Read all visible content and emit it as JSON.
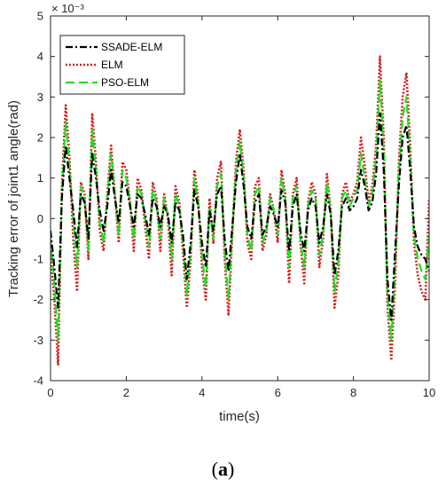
{
  "chart_data": {
    "type": "line",
    "title": "",
    "xlabel": "time(s)",
    "ylabel": "Tracking error of joint1 angle(rad)",
    "exponent_label": "× 10⁻³",
    "xlim": [
      0,
      10
    ],
    "ylim": [
      -4,
      5
    ],
    "xticks": [
      "0",
      "2",
      "4",
      "6",
      "8",
      "10"
    ],
    "yticks": [
      "-4",
      "-3",
      "-2",
      "-1",
      "0",
      "1",
      "2",
      "3",
      "4",
      "5"
    ],
    "legend_position": "top-left",
    "grid": false,
    "series": [
      {
        "name": "SSADE-ELM",
        "color": "#000000",
        "style": "dashdot",
        "x": [
          0,
          0.1,
          0.2,
          0.3,
          0.4,
          0.5,
          0.6,
          0.7,
          0.8,
          0.9,
          1.0,
          1.1,
          1.2,
          1.3,
          1.4,
          1.5,
          1.6,
          1.7,
          1.8,
          1.9,
          2.0,
          2.1,
          2.2,
          2.3,
          2.4,
          2.5,
          2.6,
          2.7,
          2.8,
          2.9,
          3.0,
          3.1,
          3.2,
          3.3,
          3.4,
          3.5,
          3.6,
          3.7,
          3.8,
          3.9,
          4.0,
          4.1,
          4.2,
          4.3,
          4.4,
          4.5,
          4.6,
          4.7,
          4.8,
          4.9,
          5.0,
          5.1,
          5.2,
          5.3,
          5.4,
          5.5,
          5.6,
          5.7,
          5.8,
          5.9,
          6.0,
          6.1,
          6.2,
          6.3,
          6.4,
          6.5,
          6.6,
          6.7,
          6.8,
          6.9,
          7.0,
          7.1,
          7.2,
          7.3,
          7.4,
          7.5,
          7.6,
          7.7,
          7.8,
          7.9,
          8.0,
          8.1,
          8.2,
          8.3,
          8.4,
          8.5,
          8.6,
          8.7,
          8.8,
          8.9,
          9.0,
          9.1,
          9.2,
          9.3,
          9.4,
          9.5,
          9.6,
          9.7,
          9.8,
          9.9,
          10.0
        ],
        "values": [
          -0.3,
          -1.2,
          -2.2,
          0.5,
          1.8,
          1.0,
          0.2,
          -0.7,
          0.6,
          0.4,
          -0.5,
          1.6,
          1.0,
          0.2,
          -0.3,
          0.3,
          1.2,
          0.5,
          -0.1,
          0.9,
          0.8,
          0.3,
          -0.2,
          0.6,
          0.5,
          0.1,
          -0.4,
          0.5,
          0.3,
          -0.2,
          0.3,
          0.1,
          -0.6,
          0.4,
          0.2,
          -0.4,
          -1.5,
          -0.6,
          0.7,
          0.3,
          -0.6,
          -1.2,
          0.2,
          -0.3,
          0.6,
          0.8,
          -0.5,
          -1.3,
          -0.2,
          0.9,
          1.6,
          0.8,
          -0.2,
          -0.5,
          0.4,
          0.6,
          -0.4,
          -0.2,
          0.3,
          0.1,
          -0.2,
          0.7,
          0.4,
          -0.8,
          0.3,
          0.6,
          -0.3,
          -0.8,
          0.2,
          0.5,
          0.3,
          -0.6,
          -0.2,
          0.6,
          0.1,
          -1.4,
          -0.8,
          0.3,
          0.5,
          0.2,
          0.3,
          0.5,
          1.2,
          0.8,
          0.2,
          0.4,
          1.1,
          2.6,
          1.2,
          -1.5,
          -2.5,
          -0.8,
          0.8,
          2.0,
          2.3,
          1.2,
          -0.2,
          -0.7,
          -0.9,
          -1.0,
          -1.3
        ]
      },
      {
        "name": "ELM",
        "color": "#cc2222",
        "style": "dotted",
        "x": [
          0,
          0.1,
          0.2,
          0.3,
          0.4,
          0.5,
          0.6,
          0.7,
          0.8,
          0.9,
          1.0,
          1.1,
          1.2,
          1.3,
          1.4,
          1.5,
          1.6,
          1.7,
          1.8,
          1.9,
          2.0,
          2.1,
          2.2,
          2.3,
          2.4,
          2.5,
          2.6,
          2.7,
          2.8,
          2.9,
          3.0,
          3.1,
          3.2,
          3.3,
          3.4,
          3.5,
          3.6,
          3.7,
          3.8,
          3.9,
          4.0,
          4.1,
          4.2,
          4.3,
          4.4,
          4.5,
          4.6,
          4.7,
          4.8,
          4.9,
          5.0,
          5.1,
          5.2,
          5.3,
          5.4,
          5.5,
          5.6,
          5.7,
          5.8,
          5.9,
          6.0,
          6.1,
          6.2,
          6.3,
          6.4,
          6.5,
          6.6,
          6.7,
          6.8,
          6.9,
          7.0,
          7.1,
          7.2,
          7.3,
          7.4,
          7.5,
          7.6,
          7.7,
          7.8,
          7.9,
          8.0,
          8.1,
          8.2,
          8.3,
          8.4,
          8.5,
          8.6,
          8.7,
          8.8,
          8.9,
          9.0,
          9.1,
          9.2,
          9.3,
          9.4,
          9.5,
          9.6,
          9.7,
          9.8,
          9.9,
          10.0
        ],
        "values": [
          -0.8,
          -2.0,
          -3.6,
          0.8,
          2.8,
          1.5,
          -0.5,
          -1.8,
          0.9,
          0.6,
          -1.0,
          2.6,
          1.4,
          -0.3,
          -0.8,
          0.6,
          1.8,
          0.6,
          -0.6,
          1.4,
          1.2,
          0.4,
          -0.8,
          1.0,
          0.7,
          -0.2,
          -1.0,
          0.9,
          0.5,
          -0.8,
          0.6,
          0.0,
          -1.4,
          0.8,
          0.4,
          -0.8,
          -2.2,
          -1.0,
          1.2,
          0.5,
          -1.2,
          -2.0,
          0.5,
          -0.6,
          1.0,
          1.4,
          -1.0,
          -2.4,
          -0.4,
          1.4,
          2.2,
          1.2,
          -0.6,
          -1.0,
          0.8,
          1.0,
          -0.8,
          -0.4,
          0.6,
          0.2,
          -0.6,
          1.2,
          0.6,
          -1.6,
          0.6,
          1.0,
          -0.6,
          -1.6,
          0.4,
          0.9,
          0.6,
          -1.2,
          -0.5,
          1.1,
          0.2,
          -2.2,
          -1.4,
          0.6,
          0.9,
          0.4,
          0.6,
          0.9,
          2.0,
          1.3,
          0.4,
          0.8,
          1.8,
          4.0,
          2.0,
          -2.2,
          -3.5,
          -1.6,
          1.4,
          3.0,
          3.6,
          1.8,
          -0.6,
          -1.4,
          -1.8,
          -2.0,
          0.5
        ]
      },
      {
        "name": "PSO-ELM",
        "color": "#22dd22",
        "style": "dashed",
        "x": [
          0,
          0.1,
          0.2,
          0.3,
          0.4,
          0.5,
          0.6,
          0.7,
          0.8,
          0.9,
          1.0,
          1.1,
          1.2,
          1.3,
          1.4,
          1.5,
          1.6,
          1.7,
          1.8,
          1.9,
          2.0,
          2.1,
          2.2,
          2.3,
          2.4,
          2.5,
          2.6,
          2.7,
          2.8,
          2.9,
          3.0,
          3.1,
          3.2,
          3.3,
          3.4,
          3.5,
          3.6,
          3.7,
          3.8,
          3.9,
          4.0,
          4.1,
          4.2,
          4.3,
          4.4,
          4.5,
          4.6,
          4.7,
          4.8,
          4.9,
          5.0,
          5.1,
          5.2,
          5.3,
          5.4,
          5.5,
          5.6,
          5.7,
          5.8,
          5.9,
          6.0,
          6.1,
          6.2,
          6.3,
          6.4,
          6.5,
          6.6,
          6.7,
          6.8,
          6.9,
          7.0,
          7.1,
          7.2,
          7.3,
          7.4,
          7.5,
          7.6,
          7.7,
          7.8,
          7.9,
          8.0,
          8.1,
          8.2,
          8.3,
          8.4,
          8.5,
          8.6,
          8.7,
          8.8,
          8.9,
          9.0,
          9.1,
          9.2,
          9.3,
          9.4,
          9.5,
          9.6,
          9.7,
          9.8,
          9.9,
          10.0
        ],
        "values": [
          -0.5,
          -1.6,
          -3.0,
          0.6,
          2.4,
          1.3,
          0.0,
          -1.2,
          0.8,
          0.5,
          -0.8,
          2.2,
          1.2,
          -0.1,
          -0.6,
          0.5,
          1.6,
          0.6,
          -0.4,
          1.2,
          1.0,
          0.4,
          -0.5,
          0.8,
          0.6,
          0.0,
          -0.7,
          0.7,
          0.4,
          -0.5,
          0.5,
          0.1,
          -1.0,
          0.6,
          0.3,
          -0.6,
          -1.9,
          -0.8,
          1.0,
          0.4,
          -0.9,
          -1.7,
          0.3,
          -0.5,
          0.8,
          1.1,
          -0.8,
          -2.0,
          -0.3,
          1.2,
          1.9,
          1.0,
          -0.4,
          -0.8,
          0.6,
          0.8,
          -0.6,
          -0.3,
          0.5,
          0.2,
          -0.4,
          1.0,
          0.5,
          -1.2,
          0.5,
          0.8,
          -0.5,
          -1.2,
          0.3,
          0.7,
          0.5,
          -0.9,
          -0.4,
          0.9,
          0.2,
          -1.8,
          -1.1,
          0.5,
          0.7,
          0.3,
          0.5,
          0.7,
          1.6,
          1.0,
          0.3,
          0.6,
          1.5,
          3.4,
          1.6,
          -1.9,
          -3.0,
          -1.2,
          1.1,
          2.5,
          3.0,
          1.5,
          -0.4,
          -1.0,
          -1.3,
          -1.5,
          -0.4
        ]
      }
    ]
  },
  "caption": "(a)"
}
